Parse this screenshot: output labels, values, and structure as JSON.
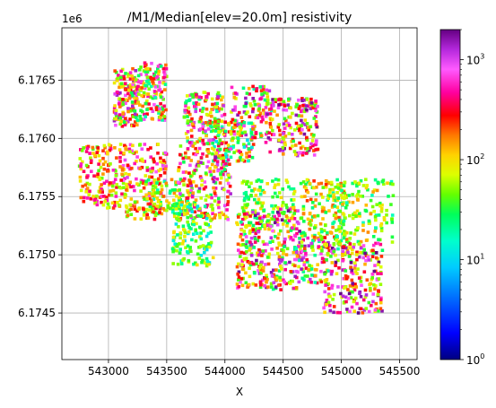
{
  "chart_data": {
    "type": "scatter",
    "title": "/M1/Median[elev=20.0m] resistivity",
    "xlabel": "X",
    "ylabel": "",
    "y_offset_label": "1e6",
    "xlim": [
      542600,
      545650
    ],
    "ylim": [
      6174100,
      6176950
    ],
    "x_ticks": [
      543000,
      543500,
      544000,
      544500,
      545000,
      545500
    ],
    "x_tick_labels": [
      "543000",
      "543500",
      "544000",
      "544500",
      "545000",
      "545500"
    ],
    "y_ticks": [
      6174500,
      6175000,
      6175500,
      6176000,
      6176500
    ],
    "y_tick_labels": [
      "6.1745",
      "6.1750",
      "6.1755",
      "6.1760",
      "6.1765"
    ],
    "grid": true,
    "colorbar": {
      "scale": "log",
      "colormap": "gist_ncar",
      "range": [
        1,
        2000
      ],
      "ticks": [
        1,
        10,
        100,
        1000
      ],
      "tick_labels": [
        "10",
        "10",
        "10",
        "10"
      ],
      "tick_exponents": [
        "0",
        "1",
        "2",
        "3"
      ]
    },
    "clusters": [
      {
        "x": [
          543050,
          543250
        ],
        "y": [
          6176100,
          6176600
        ],
        "logmin": 1.4,
        "logmax": 3.2,
        "n": 170
      },
      {
        "x": [
          543250,
          543500
        ],
        "y": [
          6176150,
          6176650
        ],
        "logmin": 1.2,
        "logmax": 3.0,
        "n": 150
      },
      {
        "x": [
          543650,
          544000
        ],
        "y": [
          6175950,
          6176400
        ],
        "logmin": 1.2,
        "logmax": 3.1,
        "n": 170
      },
      {
        "x": [
          543900,
          544250
        ],
        "y": [
          6175800,
          6176150
        ],
        "logmin": 1.0,
        "logmax": 2.8,
        "n": 120
      },
      {
        "x": [
          544050,
          544400
        ],
        "y": [
          6176000,
          6176450
        ],
        "logmin": 1.2,
        "logmax": 3.2,
        "n": 120
      },
      {
        "x": [
          544350,
          544800
        ],
        "y": [
          6175850,
          6176350
        ],
        "logmin": 1.5,
        "logmax": 3.3,
        "n": 200
      },
      {
        "x": [
          542750,
          543150
        ],
        "y": [
          6175400,
          6175950
        ],
        "logmin": 1.6,
        "logmax": 2.8,
        "n": 160
      },
      {
        "x": [
          543100,
          543500
        ],
        "y": [
          6175500,
          6175950
        ],
        "logmin": 1.6,
        "logmax": 3.0,
        "n": 130
      },
      {
        "x": [
          543300,
          543700
        ],
        "y": [
          6175350,
          6175650
        ],
        "logmin": 1.2,
        "logmax": 2.3,
        "n": 100
      },
      {
        "x": [
          543600,
          544050
        ],
        "y": [
          6175300,
          6175950
        ],
        "logmin": 1.4,
        "logmax": 3.2,
        "n": 220
      },
      {
        "x": [
          543550,
          543900
        ],
        "y": [
          6174900,
          6175450
        ],
        "logmin": 1.0,
        "logmax": 2.0,
        "n": 150
      },
      {
        "x": [
          543150,
          543450
        ],
        "y": [
          6175300,
          6175500
        ],
        "logmin": 1.6,
        "logmax": 2.6,
        "n": 50
      },
      {
        "x": [
          544150,
          544600
        ],
        "y": [
          6175200,
          6175650
        ],
        "logmin": 1.3,
        "logmax": 2.1,
        "n": 130
      },
      {
        "x": [
          544650,
          545050
        ],
        "y": [
          6175050,
          6175650
        ],
        "logmin": 1.3,
        "logmax": 2.4,
        "n": 160
      },
      {
        "x": [
          544100,
          544650
        ],
        "y": [
          6174700,
          6175400
        ],
        "logmin": 1.3,
        "logmax": 3.3,
        "n": 320
      },
      {
        "x": [
          544900,
          545450
        ],
        "y": [
          6175000,
          6175650
        ],
        "logmin": 1.2,
        "logmax": 2.2,
        "n": 180
      },
      {
        "x": [
          544600,
          544900
        ],
        "y": [
          6174750,
          6175150
        ],
        "logmin": 1.2,
        "logmax": 3.2,
        "n": 90
      },
      {
        "x": [
          544850,
          545350
        ],
        "y": [
          6174500,
          6175100
        ],
        "logmin": 1.5,
        "logmax": 3.4,
        "n": 220
      }
    ]
  }
}
